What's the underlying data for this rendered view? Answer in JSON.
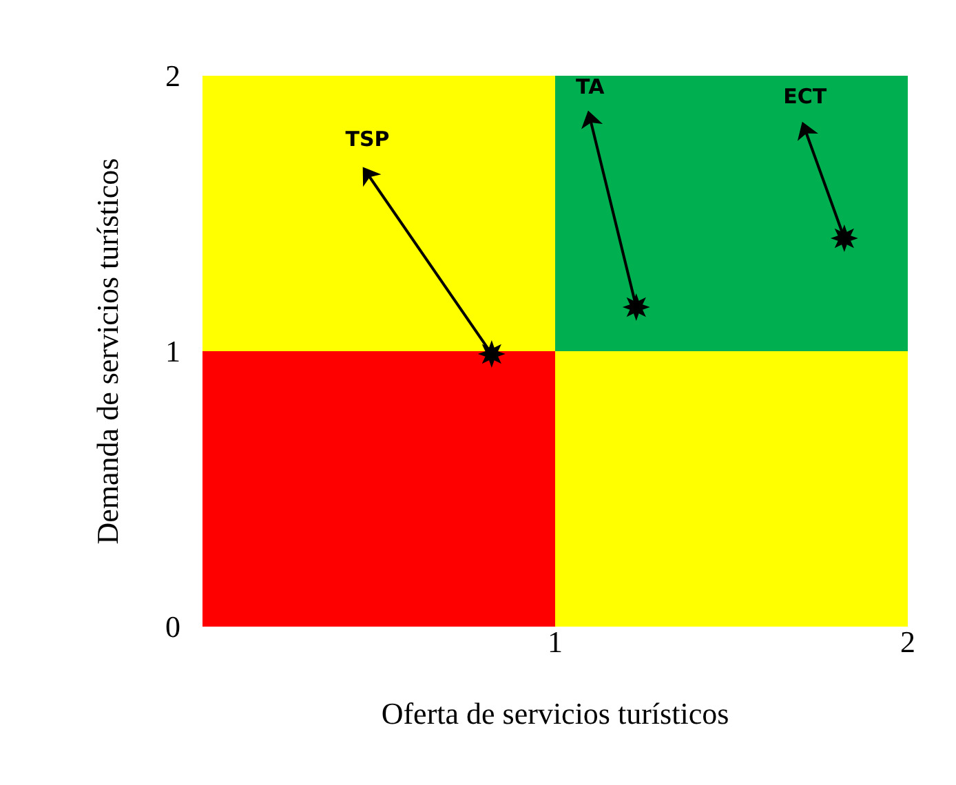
{
  "chart_data": {
    "type": "line",
    "xlabel": "Oferta de servicios turísticos",
    "ylabel": "Demanda de servicios turísticos",
    "xlim": [
      0,
      2
    ],
    "ylim": [
      0,
      2
    ],
    "xticks": [
      1,
      2
    ],
    "yticks": [
      0,
      1,
      2
    ],
    "grid": false,
    "legend": false,
    "marker": "star",
    "line_style": "solid",
    "stacked": true,
    "series": [
      {
        "type": "bar",
        "x": [
          0.5,
          1.5
        ],
        "values": [
          1,
          1
        ],
        "colors": [
          "#ff0000",
          "#ffff00"
        ]
      },
      {
        "type": "bar",
        "x": [
          0.5,
          1.5
        ],
        "values": [
          1,
          1
        ],
        "colors": [
          "#ffff00",
          "#00b050"
        ]
      },
      {
        "name": "TSP",
        "color": "#000000",
        "x": [
          0.82,
          0.47
        ],
        "values": [
          0.99,
          1.64
        ]
      },
      {
        "name": "TA",
        "color": "#000000",
        "x": [
          1.23,
          1.1
        ],
        "values": [
          1.16,
          1.84
        ]
      },
      {
        "name": "ECT",
        "color": "#000000",
        "x": [
          1.82,
          1.71
        ],
        "values": [
          1.41,
          1.8
        ]
      }
    ]
  }
}
